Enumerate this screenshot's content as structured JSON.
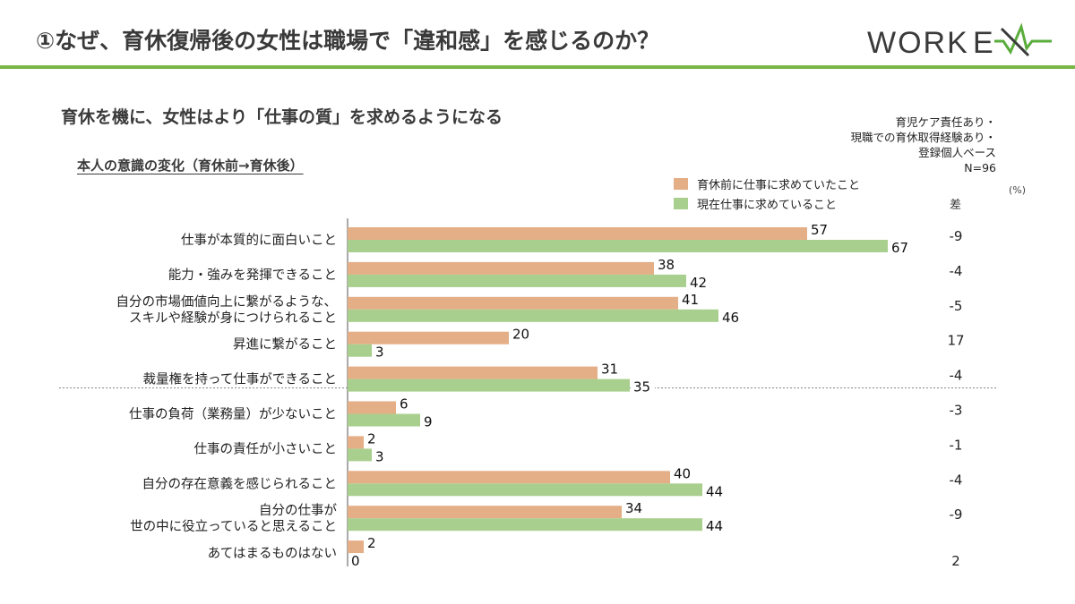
{
  "header": {
    "title": "①なぜ、育休復帰後の女性は職場で「違和感」を感じるのか？",
    "logo_text": "WORKEX"
  },
  "subtitle": "育休を機に、女性はより「仕事の質」を求めるようになる",
  "section_label": "本人の意識の変化（育休前→育休後）",
  "sample_note": [
    "育児ケア責任あり・",
    "現職での育休取得経験あり・",
    "登録個人ベース",
    "N=96"
  ],
  "unit_label": "(%)",
  "diff_header": "差",
  "colors": {
    "before": "#e4ae86",
    "after": "#a9cf8e",
    "accent_line": "#7ab648",
    "logo_accent": "#5aad3c",
    "logo_text": "#3a3a3a"
  },
  "chart_data": {
    "type": "bar",
    "orientation": "horizontal",
    "categories": [
      "仕事が本質的に面白いこと",
      "能力・強みを発揮できること",
      "自分の市場価値向上に繋がるような、\nスキルや経験が身につけられること",
      "昇進に繋がること",
      "裁量権を持って仕事ができること",
      "仕事の負荷（業務量）が少ないこと",
      "仕事の責任が小さいこと",
      "自分の存在意義を感じられること",
      "自分の仕事が\n世の中に役立っていると思えること",
      "あてはまるものはない"
    ],
    "series": [
      {
        "name": "育休前に仕事に求めていたこと",
        "values": [
          57,
          38,
          41,
          20,
          31,
          6,
          2,
          40,
          34,
          2
        ]
      },
      {
        "name": "現在仕事に求めていること",
        "values": [
          67,
          42,
          46,
          3,
          35,
          9,
          3,
          44,
          44,
          0
        ]
      }
    ],
    "diff": [
      "-9",
      "-4",
      "-5",
      "17",
      "-4",
      "-3",
      "-1",
      "-4",
      "-9",
      "2"
    ],
    "xlim": [
      0,
      100
    ],
    "separator_after_index": 4,
    "legend_position": "top-right"
  }
}
